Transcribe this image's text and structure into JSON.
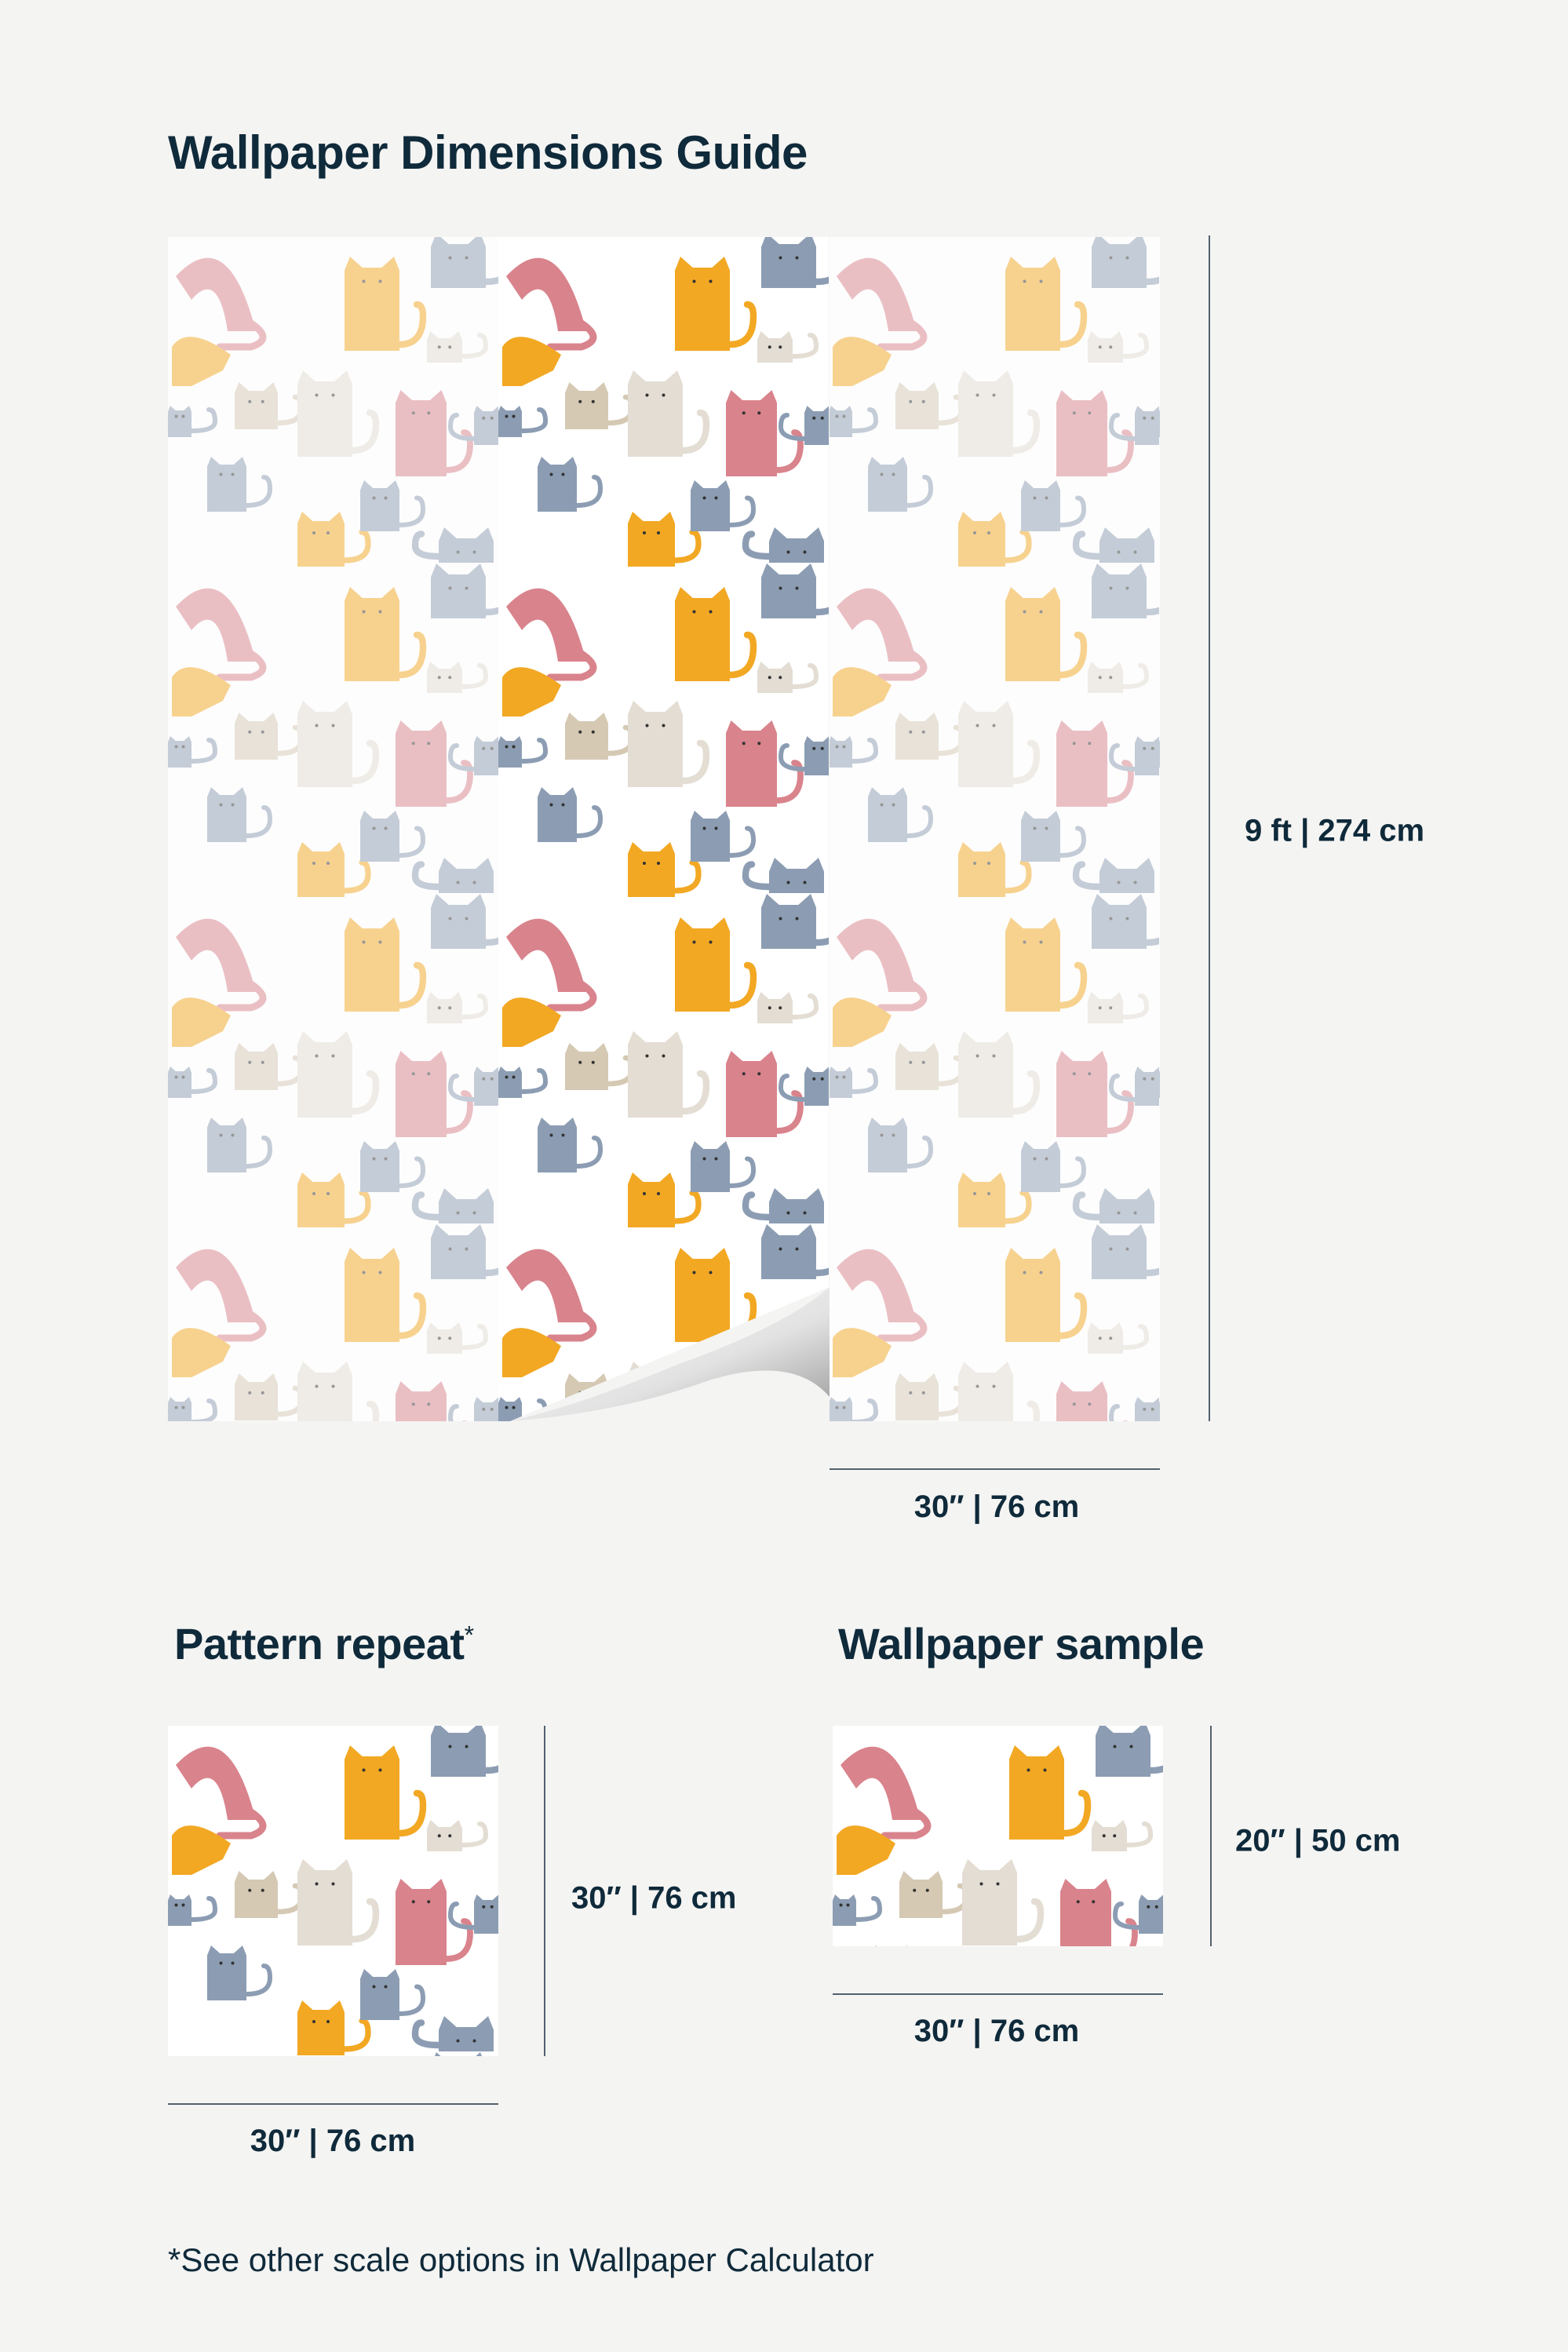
{
  "title": "Wallpaper Dimensions Guide",
  "main_panel": {
    "height_label": "9 ft | 274 cm",
    "width_label": "30″ | 76 cm",
    "strip_count": 3,
    "highlighted_strip": 2
  },
  "pattern_repeat": {
    "heading": "Pattern repeat",
    "heading_mark": "*",
    "height_label": "30″ | 76 cm",
    "width_label": "30″ | 76 cm"
  },
  "sample": {
    "heading": "Wallpaper sample",
    "height_label": "20″ | 50 cm",
    "width_label": "30″ | 76 cm"
  },
  "footnote": "*See other scale options in Wallpaper Calculator",
  "colors": {
    "text": "#0f2a3a",
    "background": "#f4f4f3",
    "cat_pink": "#d9838c",
    "cat_yellow": "#f2a823",
    "cat_blue": "#8c9db3",
    "cat_beige": "#d5c9b4",
    "cat_light": "#e3ddd3"
  }
}
